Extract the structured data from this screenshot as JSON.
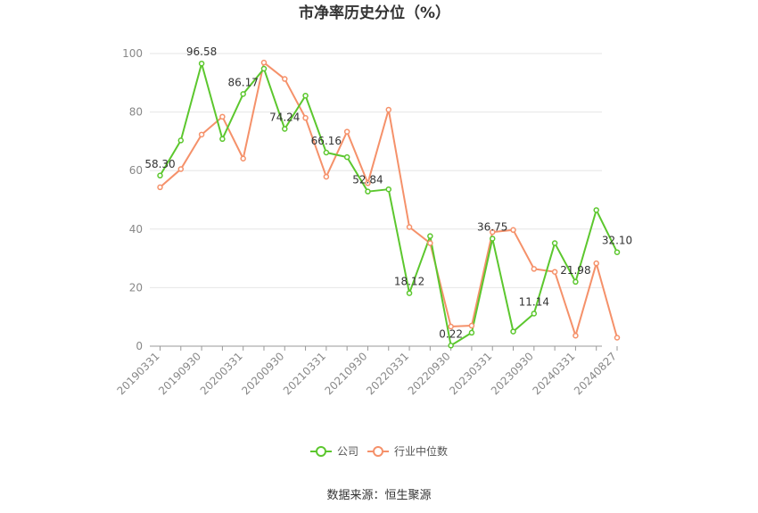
{
  "chart_data": {
    "type": "line",
    "title": "市净率历史分位（%）",
    "source": "数据来源：恒生聚源",
    "ylim": [
      0,
      100
    ],
    "yticks": [
      0,
      20,
      40,
      60,
      80,
      100
    ],
    "x": [
      "20190331",
      "20190630",
      "20190930",
      "20191231",
      "20200331",
      "20200630",
      "20200930",
      "20201231",
      "20210331",
      "20210630",
      "20210930",
      "20211231",
      "20220331",
      "20220630",
      "20220930",
      "20221231",
      "20230331",
      "20230630",
      "20230930",
      "20231231",
      "20240331",
      "20240630",
      "20240827"
    ],
    "xtick_labels": [
      "20190331",
      "20190930",
      "20200331",
      "20200930",
      "20210331",
      "20210930",
      "20220331",
      "20220930",
      "20230331",
      "20230930",
      "20240331",
      "20240827"
    ],
    "series": [
      {
        "name": "公司",
        "color": "#5cc72e",
        "values": [
          58.3,
          70.3,
          96.58,
          70.8,
          86.17,
          94.8,
          74.24,
          85.6,
          66.16,
          64.6,
          52.84,
          53.6,
          18.12,
          37.6,
          0.22,
          4.6,
          36.75,
          5.0,
          11.14,
          35.2,
          21.98,
          46.5,
          32.1
        ]
      },
      {
        "name": "行业中位数",
        "color": "#f5916a",
        "values": [
          54.3,
          60.5,
          72.3,
          78.4,
          64.1,
          96.9,
          91.3,
          78.0,
          57.9,
          73.3,
          55.7,
          80.8,
          40.7,
          35.2,
          6.7,
          7.0,
          39.0,
          39.7,
          26.4,
          25.4,
          3.6,
          28.3,
          2.9
        ]
      }
    ],
    "data_labels": [
      {
        "index": 0,
        "text": "58.30"
      },
      {
        "index": 2,
        "text": "96.58"
      },
      {
        "index": 4,
        "text": "86.17"
      },
      {
        "index": 6,
        "text": "74.24"
      },
      {
        "index": 8,
        "text": "66.16"
      },
      {
        "index": 10,
        "text": "52.84"
      },
      {
        "index": 12,
        "text": "18.12"
      },
      {
        "index": 14,
        "text": "0.22"
      },
      {
        "index": 16,
        "text": "36.75"
      },
      {
        "index": 18,
        "text": "11.14"
      },
      {
        "index": 20,
        "text": "21.98"
      },
      {
        "index": 22,
        "text": "32.10"
      }
    ],
    "legend_position": "bottom-center"
  }
}
